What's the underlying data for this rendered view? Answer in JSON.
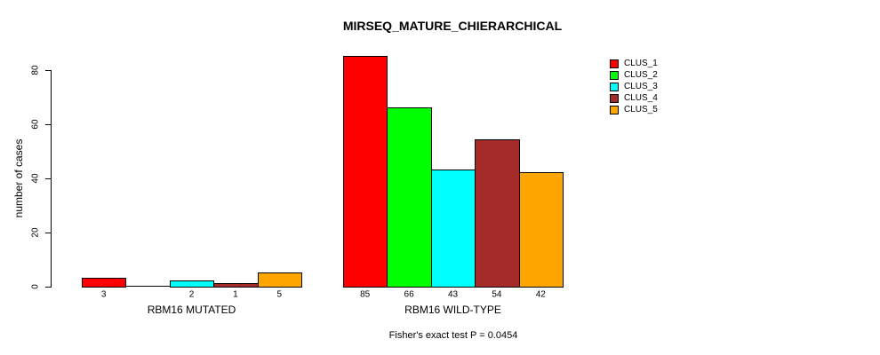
{
  "chart_data": {
    "type": "bar",
    "title": "MIRSEQ_MATURE_CHIERARCHICAL",
    "ylabel": "number of cases",
    "xlabel": "",
    "ylim": [
      0,
      85
    ],
    "yticks": [
      0,
      20,
      40,
      60,
      80
    ],
    "grid": false,
    "background": "#ffffff",
    "categories": [
      "RBM16 MUTATED",
      "RBM16 WILD-TYPE"
    ],
    "series": [
      {
        "name": "CLUS_1",
        "color": "#ff0000",
        "values": [
          3,
          85
        ]
      },
      {
        "name": "CLUS_2",
        "color": "#00ff00",
        "values": [
          0,
          66
        ]
      },
      {
        "name": "CLUS_3",
        "color": "#00ffff",
        "values": [
          2,
          43
        ]
      },
      {
        "name": "CLUS_4",
        "color": "#a52a2a",
        "values": [
          1,
          54
        ]
      },
      {
        "name": "CLUS_5",
        "color": "#ffa500",
        "values": [
          5,
          42
        ]
      }
    ],
    "bar_value_labels": [
      [
        "3",
        "",
        "2",
        "1",
        "5"
      ],
      [
        "85",
        "66",
        "43",
        "54",
        "42"
      ]
    ],
    "legend": {
      "position": "right",
      "entries": [
        {
          "label": "CLUS_1",
          "color": "#ff0000"
        },
        {
          "label": "CLUS_2",
          "color": "#00ff00"
        },
        {
          "label": "CLUS_3",
          "color": "#00ffff"
        },
        {
          "label": "CLUS_4",
          "color": "#a52a2a"
        },
        {
          "label": "CLUS_5",
          "color": "#ffa500"
        }
      ]
    },
    "annotation": "Fisher's exact test P = 0.0454"
  }
}
